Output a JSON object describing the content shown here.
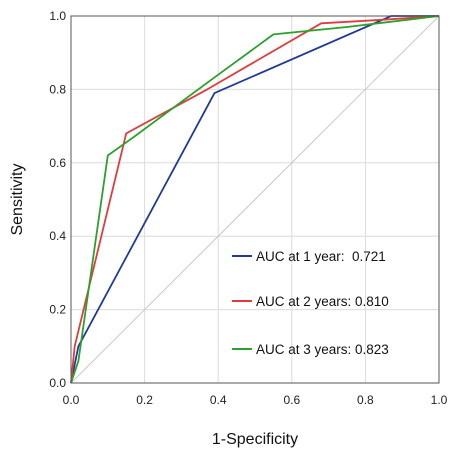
{
  "chart_data": {
    "type": "line",
    "title": "",
    "xlabel": "1-Specificity",
    "ylabel": "Sensitivity",
    "xlim": [
      0,
      1
    ],
    "ylim": [
      0,
      1
    ],
    "xticks": [
      "0.0",
      "0.2",
      "0.4",
      "0.6",
      "0.8",
      "1.0"
    ],
    "yticks": [
      "0.0",
      "0.2",
      "0.4",
      "0.6",
      "0.8",
      "1.0"
    ],
    "grid": true,
    "legend_position": "lower-right",
    "reference_line": {
      "x": [
        0,
        1
      ],
      "y": [
        0,
        1
      ],
      "color": "#c8c8c8"
    },
    "series": [
      {
        "name": "AUC at 1 year:  0.721",
        "color": "#1f3a9a",
        "x": [
          0,
          0.01,
          0.02,
          0.39,
          0.87,
          1
        ],
        "y": [
          0,
          0.05,
          0.1,
          0.79,
          1,
          1
        ]
      },
      {
        "name": "AUC at 2 years: 0.810",
        "color": "#e03c3c",
        "x": [
          0,
          0.01,
          0.15,
          0.37,
          0.68,
          0.85,
          1
        ],
        "y": [
          0,
          0.1,
          0.68,
          0.8,
          0.98,
          0.99,
          1
        ]
      },
      {
        "name": "AUC at 3 years: 0.823",
        "color": "#2ca02c",
        "x": [
          0,
          0.02,
          0.1,
          0.17,
          0.4,
          0.55,
          0.75,
          1
        ],
        "y": [
          0,
          0.06,
          0.62,
          0.67,
          0.84,
          0.95,
          0.97,
          1
        ]
      }
    ]
  }
}
